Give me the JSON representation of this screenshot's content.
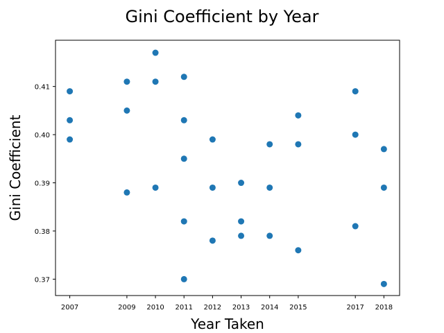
{
  "chart_data": {
    "type": "scatter",
    "title": "Gini Coefficient by Year",
    "xlabel": "Year Taken",
    "ylabel": "Gini Coefficient",
    "x_ticks": [
      2007,
      2009,
      2010,
      2011,
      2012,
      2013,
      2014,
      2015,
      2017,
      2018
    ],
    "y_ticks": [
      "0.37",
      "0.38",
      "0.39",
      "0.40",
      "0.41"
    ],
    "xlim": [
      2006.5,
      2018.55
    ],
    "ylim": [
      0.3666,
      0.4196
    ],
    "grid": false,
    "marker_color": "#1f77b4",
    "points": [
      {
        "x": 2007,
        "y": 0.409
      },
      {
        "x": 2007,
        "y": 0.403
      },
      {
        "x": 2007,
        "y": 0.399
      },
      {
        "x": 2009,
        "y": 0.411
      },
      {
        "x": 2009,
        "y": 0.405
      },
      {
        "x": 2009,
        "y": 0.388
      },
      {
        "x": 2010,
        "y": 0.417
      },
      {
        "x": 2010,
        "y": 0.411
      },
      {
        "x": 2010,
        "y": 0.389
      },
      {
        "x": 2011,
        "y": 0.412
      },
      {
        "x": 2011,
        "y": 0.403
      },
      {
        "x": 2011,
        "y": 0.395
      },
      {
        "x": 2011,
        "y": 0.382
      },
      {
        "x": 2011,
        "y": 0.37
      },
      {
        "x": 2012,
        "y": 0.399
      },
      {
        "x": 2012,
        "y": 0.389
      },
      {
        "x": 2012,
        "y": 0.378
      },
      {
        "x": 2013,
        "y": 0.39
      },
      {
        "x": 2013,
        "y": 0.382
      },
      {
        "x": 2013,
        "y": 0.379
      },
      {
        "x": 2014,
        "y": 0.398
      },
      {
        "x": 2014,
        "y": 0.389
      },
      {
        "x": 2014,
        "y": 0.379
      },
      {
        "x": 2015,
        "y": 0.404
      },
      {
        "x": 2015,
        "y": 0.398
      },
      {
        "x": 2015,
        "y": 0.376
      },
      {
        "x": 2017,
        "y": 0.409
      },
      {
        "x": 2017,
        "y": 0.4
      },
      {
        "x": 2017,
        "y": 0.381
      },
      {
        "x": 2018,
        "y": 0.397
      },
      {
        "x": 2018,
        "y": 0.389
      },
      {
        "x": 2018,
        "y": 0.369
      }
    ]
  }
}
